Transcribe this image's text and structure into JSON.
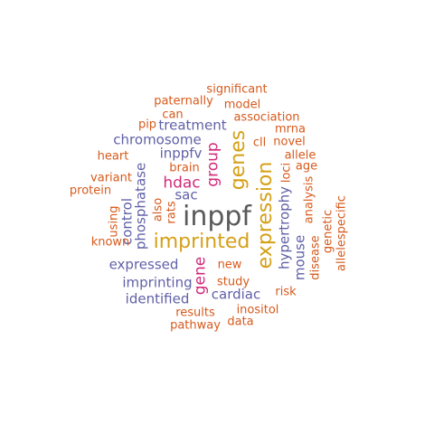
{
  "colors": {
    "gray": "#5a5a5a",
    "gold": "#d4a017",
    "magenta": "#d12a7a",
    "purple": "#6060a8",
    "orange": "#d65a1c"
  },
  "words": [
    {
      "text": "inppf",
      "color": "gray"
    },
    {
      "text": "imprinted",
      "color": "gold"
    },
    {
      "text": "expression",
      "color": "gold"
    },
    {
      "text": "genes",
      "color": "gold"
    },
    {
      "text": "group",
      "color": "magenta"
    },
    {
      "text": "gene",
      "color": "magenta"
    },
    {
      "text": "hdac",
      "color": "magenta"
    },
    {
      "text": "expressed",
      "color": "purple"
    },
    {
      "text": "chromosome",
      "color": "purple"
    },
    {
      "text": "treatment",
      "color": "purple"
    },
    {
      "text": "inppfv",
      "color": "purple"
    },
    {
      "text": "phosphatase",
      "color": "purple"
    },
    {
      "text": "control",
      "color": "purple"
    },
    {
      "text": "imprinting",
      "color": "purple"
    },
    {
      "text": "identified",
      "color": "purple"
    },
    {
      "text": "cardiac",
      "color": "purple"
    },
    {
      "text": "hypertrophy",
      "color": "purple"
    },
    {
      "text": "mouse",
      "color": "purple"
    },
    {
      "text": "sac",
      "color": "purple"
    },
    {
      "text": "significant",
      "color": "orange"
    },
    {
      "text": "paternally",
      "color": "orange"
    },
    {
      "text": "model",
      "color": "orange"
    },
    {
      "text": "can",
      "color": "orange"
    },
    {
      "text": "association",
      "color": "orange"
    },
    {
      "text": "pip",
      "color": "orange"
    },
    {
      "text": "mrna",
      "color": "orange"
    },
    {
      "text": "cll",
      "color": "orange"
    },
    {
      "text": "novel",
      "color": "orange"
    },
    {
      "text": "heart",
      "color": "orange"
    },
    {
      "text": "allele",
      "color": "orange"
    },
    {
      "text": "brain",
      "color": "orange"
    },
    {
      "text": "age",
      "color": "orange"
    },
    {
      "text": "variant",
      "color": "orange"
    },
    {
      "text": "protein",
      "color": "orange"
    },
    {
      "text": "loci",
      "color": "orange"
    },
    {
      "text": "analysis",
      "color": "orange"
    },
    {
      "text": "using",
      "color": "orange"
    },
    {
      "text": "rats",
      "color": "orange"
    },
    {
      "text": "also",
      "color": "orange"
    },
    {
      "text": "genetic",
      "color": "orange"
    },
    {
      "text": "allelespecific",
      "color": "orange"
    },
    {
      "text": "disease",
      "color": "orange"
    },
    {
      "text": "known",
      "color": "orange"
    },
    {
      "text": "new",
      "color": "orange"
    },
    {
      "text": "study",
      "color": "orange"
    },
    {
      "text": "risk",
      "color": "orange"
    },
    {
      "text": "inositol",
      "color": "orange"
    },
    {
      "text": "results",
      "color": "orange"
    },
    {
      "text": "pathway",
      "color": "orange"
    },
    {
      "text": "data",
      "color": "orange"
    }
  ]
}
